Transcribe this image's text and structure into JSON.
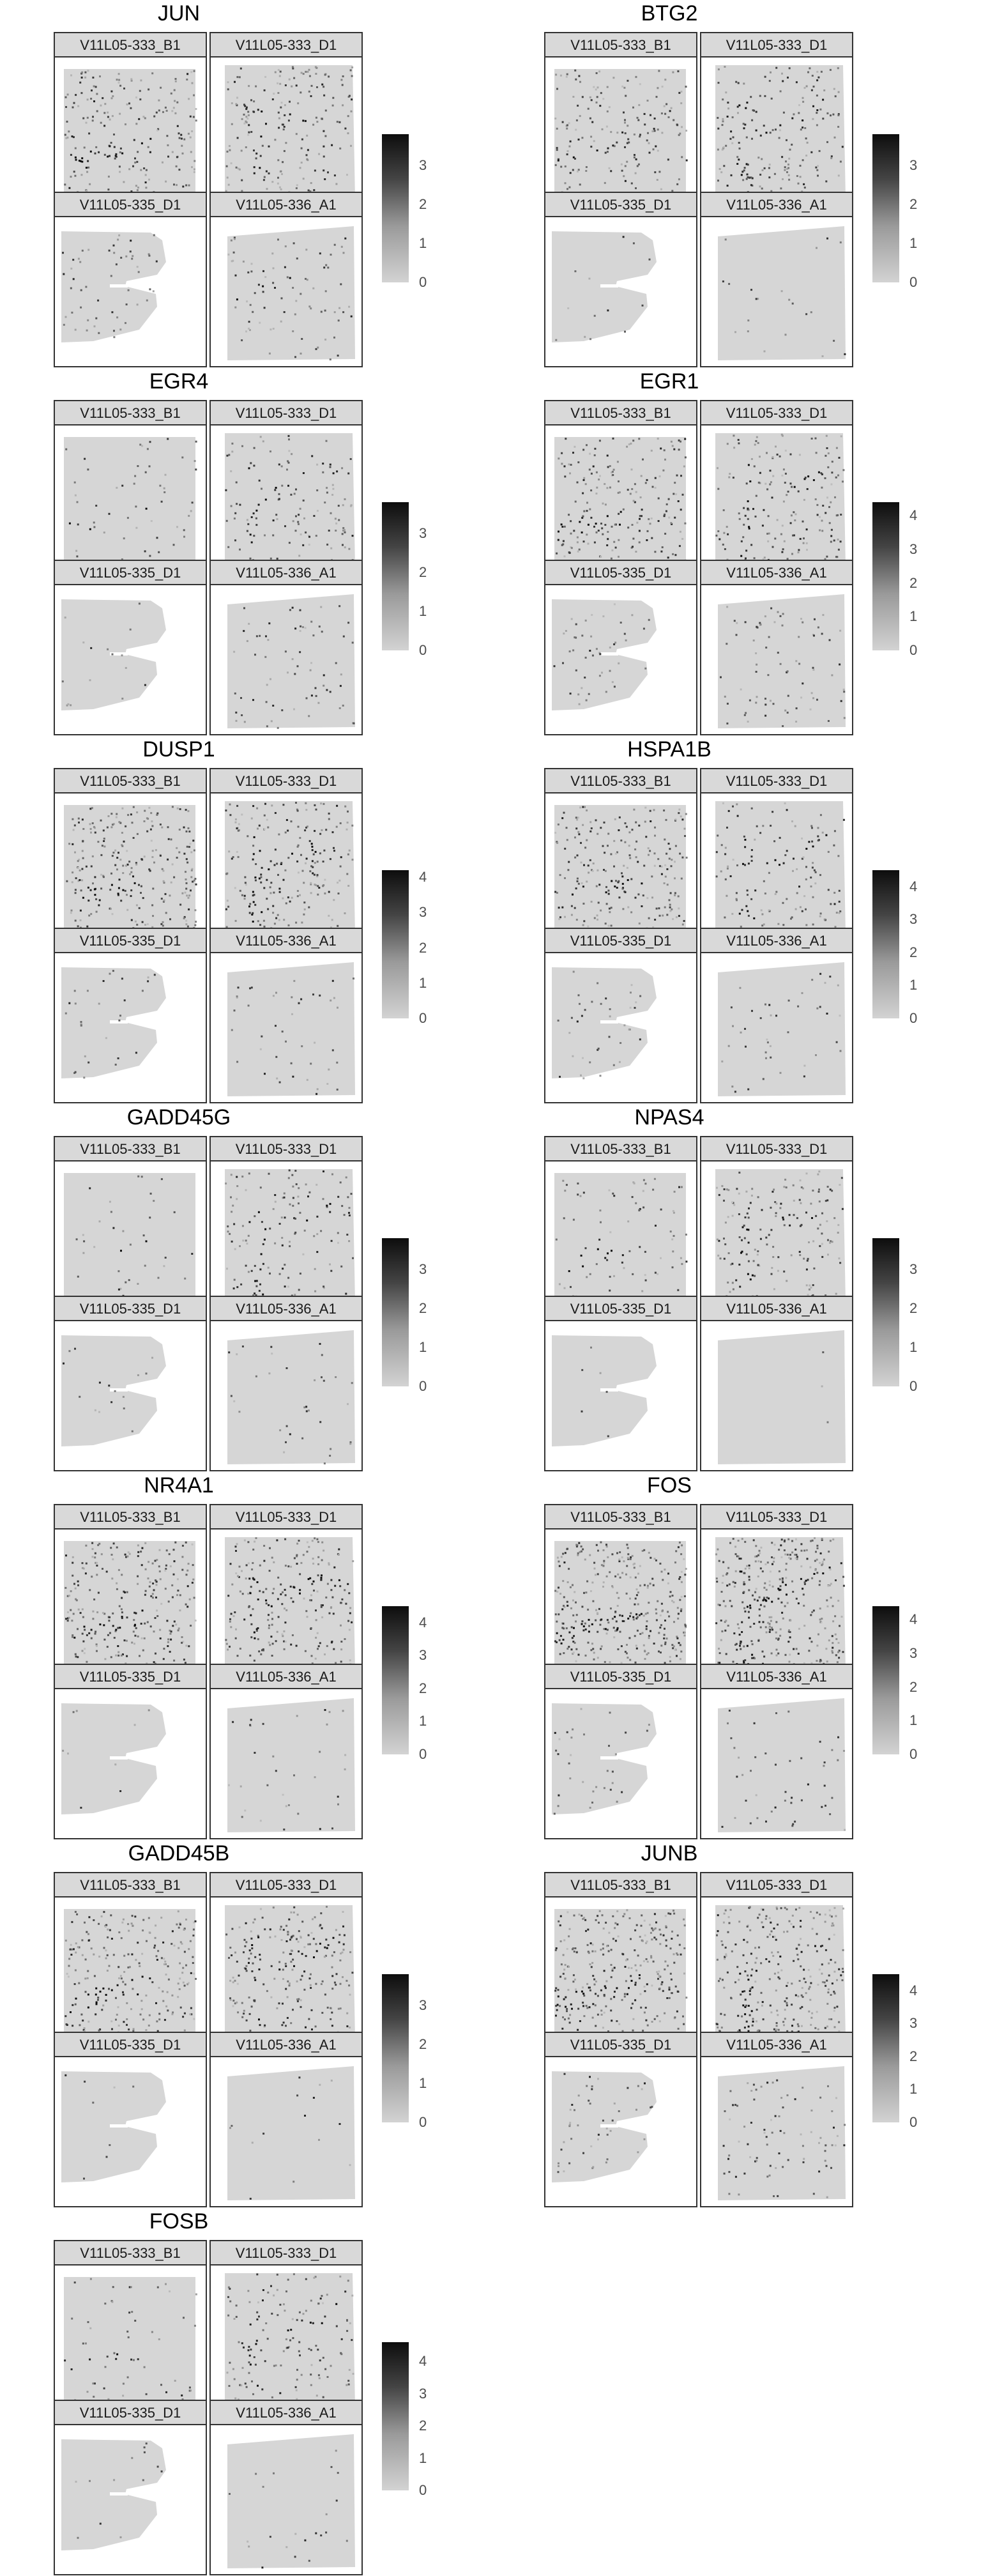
{
  "chart_data": {
    "type": "heatmap",
    "layout": "facet_wrap spatial feature plots",
    "colorscale": {
      "low": "#d3d3d3",
      "high": "#0d0d0d"
    },
    "panels": [
      {
        "title": "JUN",
        "samples": [
          "V11L05-333_B1",
          "V11L05-333_D1",
          "V11L05-335_D1",
          "V11L05-336_A1"
        ],
        "legend": [
          "0",
          "1",
          "2",
          "3"
        ],
        "scale_max": 3.8,
        "density": [
          0.45,
          0.4,
          0.22,
          0.18
        ],
        "band": [
          true,
          true,
          false,
          true
        ]
      },
      {
        "title": "BTG2",
        "samples": [
          "V11L05-333_B1",
          "V11L05-333_D1",
          "V11L05-335_D1",
          "V11L05-336_A1"
        ],
        "legend": [
          "0",
          "1",
          "2",
          "3"
        ],
        "scale_max": 3.8,
        "density": [
          0.4,
          0.38,
          0.05,
          0.05
        ],
        "band": [
          true,
          true,
          false,
          false
        ]
      },
      {
        "title": "EGR4",
        "samples": [
          "V11L05-333_B1",
          "V11L05-333_D1",
          "V11L05-335_D1",
          "V11L05-336_A1"
        ],
        "legend": [
          "0",
          "1",
          "2",
          "3"
        ],
        "scale_max": 3.8,
        "density": [
          0.12,
          0.28,
          0.07,
          0.16
        ],
        "band": [
          true,
          true,
          false,
          false
        ]
      },
      {
        "title": "EGR1",
        "samples": [
          "V11L05-333_B1",
          "V11L05-333_D1",
          "V11L05-335_D1",
          "V11L05-336_A1"
        ],
        "legend": [
          "0",
          "1",
          "2",
          "3",
          "4"
        ],
        "scale_max": 4.4,
        "density": [
          0.42,
          0.38,
          0.2,
          0.2
        ],
        "band": [
          true,
          true,
          false,
          false
        ]
      },
      {
        "title": "DUSP1",
        "samples": [
          "V11L05-333_B1",
          "V11L05-333_D1",
          "V11L05-335_D1",
          "V11L05-336_A1"
        ],
        "legend": [
          "0",
          "1",
          "2",
          "3",
          "4"
        ],
        "scale_max": 4.2,
        "density": [
          0.55,
          0.45,
          0.1,
          0.1
        ],
        "band": [
          true,
          true,
          false,
          false
        ]
      },
      {
        "title": "HSPA1B",
        "samples": [
          "V11L05-333_B1",
          "V11L05-333_D1",
          "V11L05-335_D1",
          "V11L05-336_A1"
        ],
        "legend": [
          "0",
          "1",
          "2",
          "3",
          "4"
        ],
        "scale_max": 4.5,
        "density": [
          0.45,
          0.3,
          0.15,
          0.1
        ],
        "band": [
          true,
          true,
          false,
          false
        ]
      },
      {
        "title": "GADD45G",
        "samples": [
          "V11L05-333_B1",
          "V11L05-333_D1",
          "V11L05-335_D1",
          "V11L05-336_A1"
        ],
        "legend": [
          "0",
          "1",
          "2",
          "3"
        ],
        "scale_max": 3.8,
        "density": [
          0.08,
          0.3,
          0.05,
          0.08
        ],
        "band": [
          true,
          true,
          false,
          false
        ]
      },
      {
        "title": "NPAS4",
        "samples": [
          "V11L05-333_B1",
          "V11L05-333_D1",
          "V11L05-335_D1",
          "V11L05-336_A1"
        ],
        "legend": [
          "0",
          "1",
          "2",
          "3"
        ],
        "scale_max": 3.8,
        "density": [
          0.18,
          0.35,
          0.02,
          0.01
        ],
        "band": [
          true,
          true,
          false,
          false
        ]
      },
      {
        "title": "NR4A1",
        "samples": [
          "V11L05-333_B1",
          "V11L05-333_D1",
          "V11L05-335_D1",
          "V11L05-336_A1"
        ],
        "legend": [
          "0",
          "1",
          "2",
          "3",
          "4"
        ],
        "scale_max": 4.5,
        "density": [
          0.55,
          0.5,
          0.04,
          0.07
        ],
        "band": [
          true,
          true,
          false,
          false
        ]
      },
      {
        "title": "FOS",
        "samples": [
          "V11L05-333_B1",
          "V11L05-333_D1",
          "V11L05-335_D1",
          "V11L05-336_A1"
        ],
        "legend": [
          "0",
          "1",
          "2",
          "3",
          "4"
        ],
        "scale_max": 4.4,
        "density": [
          0.7,
          0.7,
          0.12,
          0.12
        ],
        "band": [
          true,
          true,
          false,
          false
        ]
      },
      {
        "title": "GADD45B",
        "samples": [
          "V11L05-333_B1",
          "V11L05-333_D1",
          "V11L05-335_D1",
          "V11L05-336_A1"
        ],
        "legend": [
          "0",
          "1",
          "2",
          "3"
        ],
        "scale_max": 3.8,
        "density": [
          0.5,
          0.45,
          0.04,
          0.05
        ],
        "band": [
          true,
          true,
          false,
          false
        ]
      },
      {
        "title": "JUNB",
        "samples": [
          "V11L05-333_B1",
          "V11L05-333_D1",
          "V11L05-335_D1",
          "V11L05-336_A1"
        ],
        "legend": [
          "0",
          "1",
          "2",
          "3",
          "4"
        ],
        "scale_max": 4.5,
        "density": [
          0.6,
          0.55,
          0.2,
          0.2
        ],
        "band": [
          true,
          true,
          false,
          false
        ]
      },
      {
        "title": "FOSB",
        "samples": [
          "V11L05-333_B1",
          "V11L05-333_D1",
          "V11L05-335_D1",
          "V11L05-336_A1"
        ],
        "legend": [
          "0",
          "1",
          "2",
          "3",
          "4"
        ],
        "scale_max": 4.6,
        "density": [
          0.12,
          0.3,
          0.05,
          0.05
        ],
        "band": [
          true,
          true,
          false,
          false
        ]
      }
    ]
  }
}
